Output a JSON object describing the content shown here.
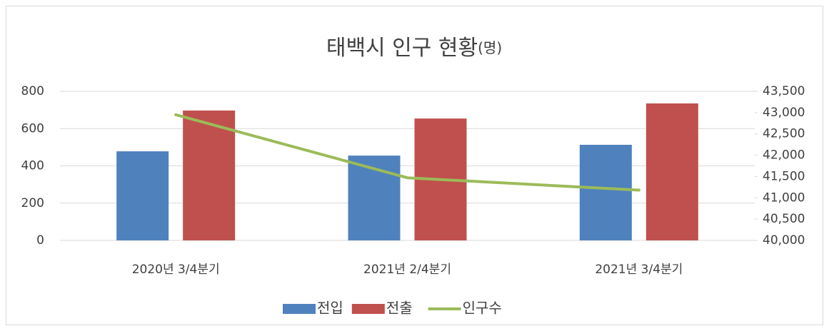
{
  "chart_data": {
    "type": "bar_line",
    "title": "태백시 인구 현황",
    "title_unit": "(명)",
    "categories": [
      "2020년 3/4분기",
      "2021년 2/4분기",
      "2021년 3/4분기"
    ],
    "series": [
      {
        "name": "전입",
        "color": "#4f81bd",
        "type": "bar",
        "values": [
          478,
          455,
          513
        ]
      },
      {
        "name": "전출",
        "color": "#c0504d",
        "type": "bar",
        "values": [
          697,
          654,
          735
        ]
      },
      {
        "name": "인구수",
        "color": "#9bbb59",
        "type": "line",
        "axis": "y2",
        "values": [
          42950,
          41470,
          41180
        ]
      }
    ],
    "ylim": [
      0,
      800
    ],
    "yticks": [
      0,
      200,
      400,
      600,
      800
    ],
    "y2lim": [
      40000,
      43500
    ],
    "y2ticks": [
      {
        "value": 40000,
        "label": "40,000"
      },
      {
        "value": 40500,
        "label": "40,500"
      },
      {
        "value": 41000,
        "label": "41,000"
      },
      {
        "value": 41500,
        "label": "41,500"
      },
      {
        "value": 42000,
        "label": "42,000"
      },
      {
        "value": 42500,
        "label": "42,500"
      },
      {
        "value": 43000,
        "label": "43,000"
      },
      {
        "value": 43500,
        "label": "43,500"
      }
    ],
    "grid": true,
    "legend": "bottom"
  }
}
